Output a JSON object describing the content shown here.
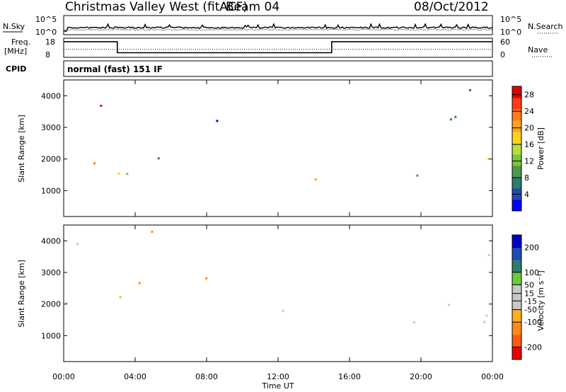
{
  "header": {
    "station": "Christmas Valley West (fitACF)",
    "beam": "Beam 04",
    "date": "08/Oct/2012"
  },
  "strips": {
    "noise_left_label": "N.Sky",
    "noise_right_label": "N.Search",
    "noise_left_ticks": [
      "10^5",
      "10^0"
    ],
    "noise_right_ticks": [
      "10^5",
      "10^0"
    ],
    "freq_label_1": "Freq.",
    "freq_label_2": "[MHz]",
    "freq_ticks": [
      "18",
      "8"
    ],
    "nave_label": "Nave",
    "nave_ticks": [
      "60",
      "0"
    ],
    "cpid_label": "CPID",
    "cpid_text": "normal (fast) 151 IF"
  },
  "colors": {
    "power_scale": [
      "#0000ff",
      "#1f4bb5",
      "#2e7d6b",
      "#4a9a4a",
      "#7ec63c",
      "#b7e03a",
      "#ffd21f",
      "#ffa21f",
      "#ff7a1f",
      "#ff3b12",
      "#e00000"
    ],
    "velocity_scale": [
      "#0000cc",
      "#1f4bb5",
      "#2e7d6b",
      "#6acb3a",
      "#c8c8c8",
      "#c8c8c8",
      "#ffb01f",
      "#ff8a1a",
      "#ff5a14",
      "#ee0000"
    ]
  },
  "chart_data": [
    {
      "type": "line",
      "panel": "noise",
      "series_note_left": "N.Sky",
      "series_note_right": "N.Search",
      "y_scale": "log",
      "ylim": [
        1,
        100000
      ],
      "x": [
        "00:00",
        "04:00",
        "08:00",
        "12:00",
        "16:00",
        "20:00",
        "00:00"
      ]
    },
    {
      "type": "line",
      "panel": "frequency and nave",
      "ylabel": "Freq. [MHz]",
      "ylim": [
        8,
        18
      ],
      "y2label": "Nave",
      "y2lim": [
        0,
        60
      ],
      "frequency_steps": [
        {
          "from_hour": 0.0,
          "to_hour": 3.0,
          "freq_mhz": 16.2
        },
        {
          "from_hour": 3.0,
          "to_hour": 15.0,
          "freq_mhz": 10.4
        },
        {
          "from_hour": 15.0,
          "to_hour": 24.0,
          "freq_mhz": 16.2
        }
      ],
      "nave_approx": 25
    },
    {
      "type": "heatmap",
      "panel": "power",
      "ylabel": "Slant Range [km]",
      "xlabel": "",
      "xlim_hours": [
        0,
        24
      ],
      "ylim": [
        180,
        4500
      ],
      "y_ticks": [
        1000,
        2000,
        3000,
        4000
      ],
      "colorbar_label": "Power [dB]",
      "colorbar_ticks": [
        4,
        8,
        12,
        16,
        20,
        24,
        28
      ],
      "colorbar_range": [
        0,
        30
      ]
    },
    {
      "type": "heatmap",
      "panel": "velocity",
      "ylabel": "Slant Range [km]",
      "xlabel": "Time UT",
      "xlim_hours": [
        0,
        24
      ],
      "ylim": [
        180,
        4500
      ],
      "y_ticks": [
        1000,
        2000,
        3000,
        4000
      ],
      "x_ticks": [
        "00:00",
        "04:00",
        "08:00",
        "12:00",
        "16:00",
        "20:00",
        "00:00"
      ],
      "colorbar_label": "Velocity [m s⁻¹]",
      "colorbar_ticks": [
        200,
        100,
        50,
        15,
        -15,
        -50,
        -100,
        -200
      ],
      "colorbar_range": [
        -250,
        250
      ]
    }
  ]
}
